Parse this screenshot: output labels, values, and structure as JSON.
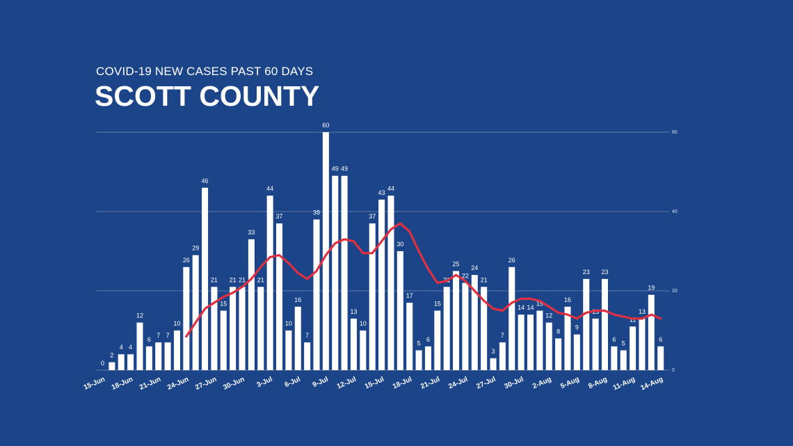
{
  "chart_data": {
    "type": "bar",
    "title": "SCOTT COUNTY",
    "subtitle": "COVID-19 NEW CASES PAST 60 DAYS",
    "xlabel": "",
    "ylabel": "",
    "ylim": [
      0,
      60
    ],
    "y_ticks": [
      "0",
      "20",
      "40",
      "60"
    ],
    "grid": true,
    "x_tick_labels": [
      "15-Jun",
      "18-Jun",
      "21-Jun",
      "24-Jun",
      "27-Jun",
      "30-Jun",
      "3-Jul",
      "6-Jul",
      "9-Jul",
      "12-Jul",
      "15-Jul",
      "18-Jul",
      "21-Jul",
      "24-Jul",
      "27-Jul",
      "30-Jul",
      "2-Aug",
      "5-Aug",
      "8-Aug",
      "11-Aug",
      "14-Aug"
    ],
    "x_tick_every": 3,
    "series": [
      {
        "type": "bar",
        "values": [
          0,
          2,
          4,
          4,
          12,
          6,
          7,
          7,
          10,
          26,
          29,
          46,
          21,
          15,
          21,
          21,
          33,
          21,
          44,
          37,
          10,
          16,
          7,
          38,
          60,
          49,
          49,
          13,
          10,
          37,
          43,
          44,
          30,
          17,
          5,
          6,
          15,
          21,
          25,
          22,
          24,
          21,
          3,
          7,
          26,
          14,
          14,
          15,
          12,
          8,
          16,
          9,
          23,
          13,
          23,
          6,
          5,
          11,
          13,
          19,
          6
        ]
      },
      {
        "type": "line",
        "values": [
          null,
          null,
          null,
          null,
          null,
          null,
          null,
          null,
          null,
          8.5,
          12,
          15.5,
          17,
          18.5,
          19.5,
          21,
          23,
          26,
          28.5,
          29,
          27,
          24.5,
          23,
          25,
          29,
          32,
          33,
          32.5,
          29.5,
          29.5,
          32.5,
          35.5,
          37,
          35,
          30,
          25.5,
          22,
          22.5,
          24,
          22.5,
          20,
          17.5,
          15.5,
          15,
          17,
          18,
          18,
          17.5,
          16,
          14.5,
          14,
          13,
          14.5,
          15,
          15,
          14,
          13.5,
          13,
          13,
          14,
          13
        ]
      }
    ]
  },
  "colors": {
    "background": "#1c4589",
    "bars": "#ffffff",
    "moving_average": "#e0303f",
    "grid": "#5f79a8"
  }
}
